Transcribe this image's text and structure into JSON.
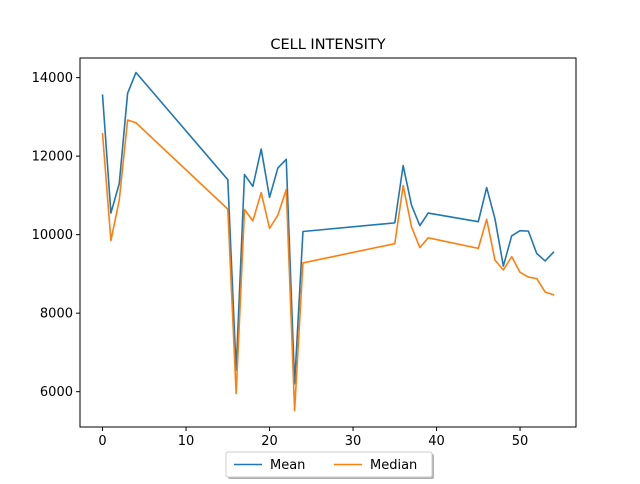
{
  "chart_data": {
    "type": "line",
    "title": "CELL INTENSITY",
    "xlabel": "",
    "ylabel": "",
    "xlim": [
      -2.7,
      56.7
    ],
    "ylim": [
      5100,
      14500
    ],
    "xticks": [
      0,
      10,
      20,
      30,
      40,
      50
    ],
    "yticks": [
      6000,
      8000,
      10000,
      12000,
      14000
    ],
    "grid": false,
    "legend": {
      "placement": "bottom-center",
      "columns": 2
    },
    "x": [
      0,
      1,
      2,
      3,
      4,
      15,
      16,
      17,
      18,
      19,
      20,
      21,
      22,
      23,
      24,
      35,
      36,
      37,
      38,
      39,
      45,
      46,
      47,
      48,
      49,
      50,
      51,
      52,
      53,
      54
    ],
    "series": [
      {
        "name": "Mean",
        "color": "#1f77b4",
        "values": [
          13550,
          10550,
          11300,
          13600,
          14130,
          11400,
          6550,
          11530,
          11230,
          12180,
          10950,
          11700,
          11920,
          6200,
          10080,
          10300,
          11760,
          10750,
          10230,
          10550,
          10330,
          11200,
          10400,
          9200,
          9970,
          10100,
          10090,
          9520,
          9330,
          9550
        ]
      },
      {
        "name": "Median",
        "color": "#ff7f0e",
        "values": [
          12570,
          9850,
          10880,
          12920,
          12850,
          10650,
          5950,
          10640,
          10350,
          11070,
          10160,
          10500,
          11150,
          5520,
          9280,
          9770,
          11250,
          10200,
          9670,
          9920,
          9650,
          10390,
          9350,
          9100,
          9440,
          9040,
          8920,
          8880,
          8540,
          8470
        ]
      }
    ]
  }
}
